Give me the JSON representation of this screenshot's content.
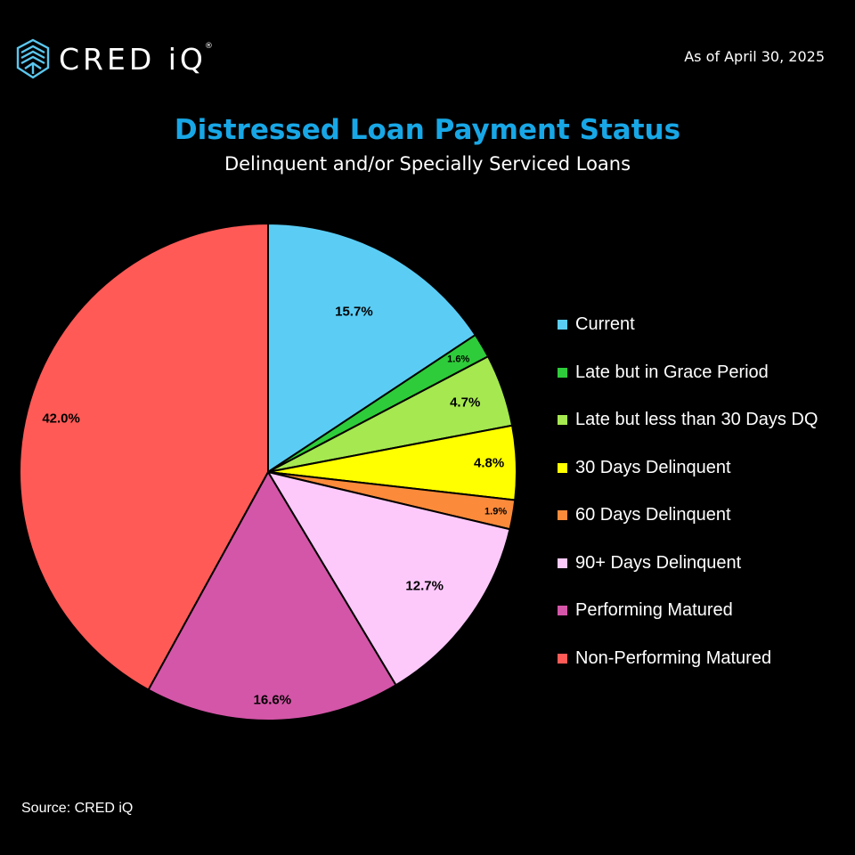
{
  "header": {
    "logo_text": "CRED iQ",
    "logo_mark": "®",
    "as_of": "As of April 30, 2025"
  },
  "footer": {
    "source": "Source: CRED iQ"
  },
  "chart_data": {
    "type": "pie",
    "title": "Distressed Loan Payment Status",
    "subtitle": "Delinquent and/or Specially Serviced Loans",
    "start_angle": "12 o'clock",
    "direction": "clockwise",
    "legend_position": "right",
    "categories": [
      "Current",
      "Late but in Grace Period",
      "Late but less than 30 Days DQ",
      "30 Days Delinquent",
      "60 Days Delinquent",
      "90+ Days Delinquent",
      "Performing Matured",
      "Non-Performing Matured"
    ],
    "values": [
      15.7,
      1.6,
      4.7,
      4.8,
      1.9,
      12.7,
      16.6,
      42.0
    ],
    "data_labels": [
      "15.7%",
      "1.6%",
      "4.7%",
      "4.8%",
      "1.9%",
      "12.7%",
      "16.6%",
      "42.0%"
    ],
    "colors": [
      "#5bcdf5",
      "#2ecc3a",
      "#a6e850",
      "#ffff00",
      "#fb8a3a",
      "#fdc9fb",
      "#d456a8",
      "#ff5a56"
    ]
  }
}
